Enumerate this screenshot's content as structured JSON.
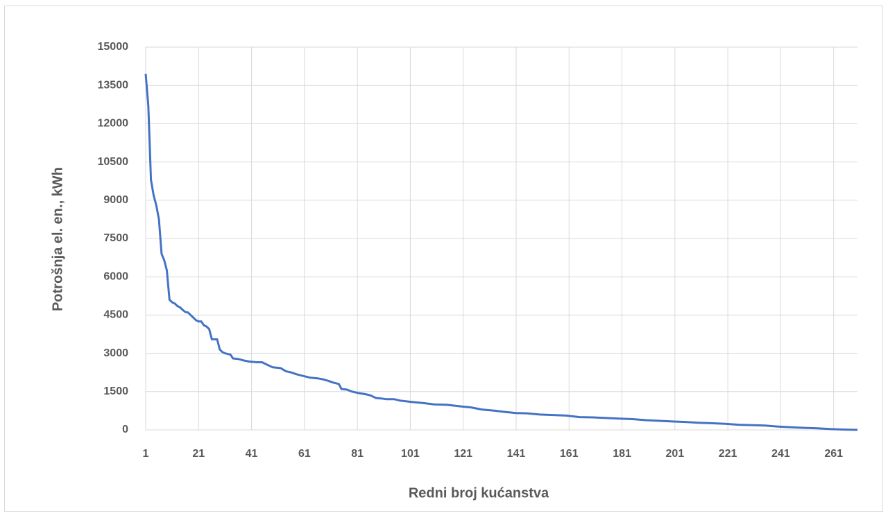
{
  "chart_data": {
    "type": "line",
    "x_label": "Redni broj kućanstva",
    "y_label": "Potrošnja el. en., kWh",
    "color": "#4472c4",
    "grid": true,
    "xlim": [
      1,
      270
    ],
    "ylim": [
      0,
      15000
    ],
    "xticks": [
      1,
      21,
      41,
      61,
      81,
      101,
      121,
      141,
      161,
      181,
      201,
      221,
      241,
      261
    ],
    "yticks": [
      0,
      1500,
      3000,
      4500,
      6000,
      7500,
      9000,
      10500,
      12000,
      13500,
      15000
    ],
    "x": [
      1,
      2,
      3,
      4,
      5,
      6,
      7,
      8,
      9,
      10,
      11,
      12,
      13,
      14,
      15,
      16,
      17,
      18,
      19,
      20,
      21,
      22,
      23,
      24,
      25,
      26,
      27,
      28,
      29,
      30,
      31,
      33,
      34,
      36,
      38,
      40,
      43,
      45,
      47,
      49,
      52,
      54,
      56,
      58,
      61,
      63,
      66,
      68,
      70,
      72,
      74,
      75,
      77,
      79,
      81,
      84,
      86,
      88,
      90,
      92,
      95,
      97,
      101,
      106,
      110,
      115,
      120,
      124,
      128,
      133,
      137,
      141,
      145,
      150,
      160,
      165,
      170,
      180,
      185,
      190,
      200,
      205,
      210,
      220,
      225,
      235,
      240,
      245,
      250,
      255,
      260,
      265,
      270
    ],
    "values": [
      13950,
      12700,
      9800,
      9200,
      8800,
      8250,
      6900,
      6650,
      6250,
      5100,
      5000,
      4950,
      4850,
      4800,
      4700,
      4620,
      4600,
      4500,
      4400,
      4300,
      4250,
      4250,
      4100,
      4050,
      3950,
      3550,
      3550,
      3550,
      3150,
      3050,
      3000,
      2950,
      2800,
      2780,
      2720,
      2680,
      2650,
      2650,
      2550,
      2450,
      2420,
      2300,
      2250,
      2180,
      2100,
      2050,
      2020,
      1980,
      1920,
      1850,
      1800,
      1600,
      1580,
      1500,
      1450,
      1400,
      1350,
      1250,
      1230,
      1200,
      1200,
      1150,
      1100,
      1050,
      1000,
      980,
      920,
      880,
      800,
      750,
      700,
      660,
      650,
      600,
      560,
      500,
      490,
      440,
      420,
      380,
      330,
      310,
      280,
      240,
      200,
      170,
      130,
      100,
      80,
      60,
      30,
      10,
      0
    ]
  }
}
